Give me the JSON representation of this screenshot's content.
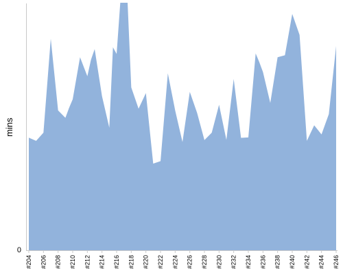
{
  "chart_data": {
    "type": "area",
    "ylabel": "mins",
    "y_ticks": [
      "0"
    ],
    "categories": [
      "#204",
      "#206",
      "#208",
      "#210",
      "#212",
      "#214",
      "#216",
      "#218",
      "#220",
      "#222",
      "#224",
      "#226",
      "#228",
      "#230",
      "#232",
      "#234",
      "#236",
      "#238",
      "#240",
      "#242",
      "#244",
      "#246"
    ],
    "x": [
      204,
      205,
      206,
      207,
      208,
      209,
      209.5,
      210,
      211,
      212,
      212.5,
      213,
      214,
      215,
      215.5,
      216,
      216.5,
      217,
      217.5,
      218,
      219,
      220,
      221,
      222,
      223,
      224,
      225,
      226,
      227,
      228,
      229,
      230,
      231,
      232,
      233,
      234,
      235,
      235.5,
      236,
      237,
      238,
      239,
      240,
      241,
      242,
      243,
      244,
      245,
      246
    ],
    "values": [
      45.5,
      44.2,
      47.5,
      85.5,
      56.5,
      53.5,
      57.5,
      61,
      78,
      70.3,
      77,
      81.3,
      62.3,
      49.5,
      82,
      79.3,
      100,
      100,
      100,
      65.8,
      57.2,
      63.5,
      35,
      36,
      71.5,
      56.5,
      43.7,
      64,
      55.5,
      44.5,
      47.5,
      58.8,
      44.6,
      69.2,
      45.4,
      45.6,
      79.5,
      76,
      72,
      59.5,
      78,
      78.8,
      95.5,
      87,
      44.2,
      50.5,
      46.8,
      55,
      82.5
    ],
    "ylim": [
      0,
      100
    ],
    "fill_color": "#92b3dc",
    "grid": false
  }
}
